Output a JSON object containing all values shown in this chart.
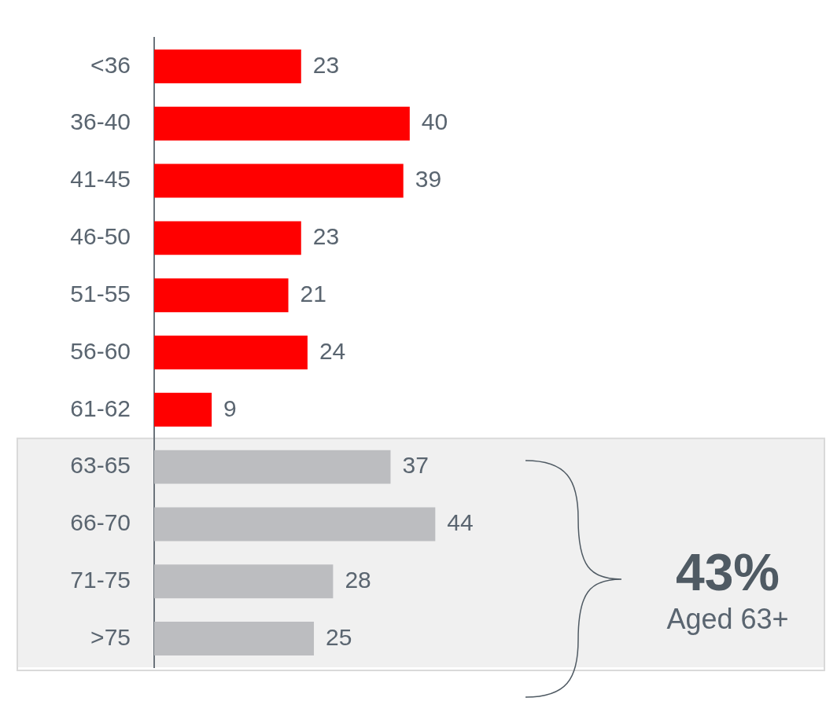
{
  "chart_data": {
    "type": "bar",
    "orientation": "horizontal",
    "categories": [
      "<36",
      "36-40",
      "41-45",
      "46-50",
      "51-55",
      "56-60",
      "61-62",
      "63-65",
      "66-70",
      "71-75",
      ">75"
    ],
    "values": [
      23,
      40,
      39,
      23,
      21,
      24,
      9,
      37,
      44,
      28,
      25
    ],
    "colors": [
      "#ff0000",
      "#ff0000",
      "#ff0000",
      "#ff0000",
      "#ff0000",
      "#ff0000",
      "#ff0000",
      "#bcbdc0",
      "#bcbdc0",
      "#bcbdc0",
      "#bcbdc0"
    ],
    "data_labels": true,
    "grid": false,
    "legend": false,
    "bands": [
      {
        "axis": "y",
        "from": "63-65",
        "to": ">75",
        "color": "#f0f0f0"
      }
    ],
    "annotations": [
      "43%",
      "Aged 63+"
    ]
  }
}
